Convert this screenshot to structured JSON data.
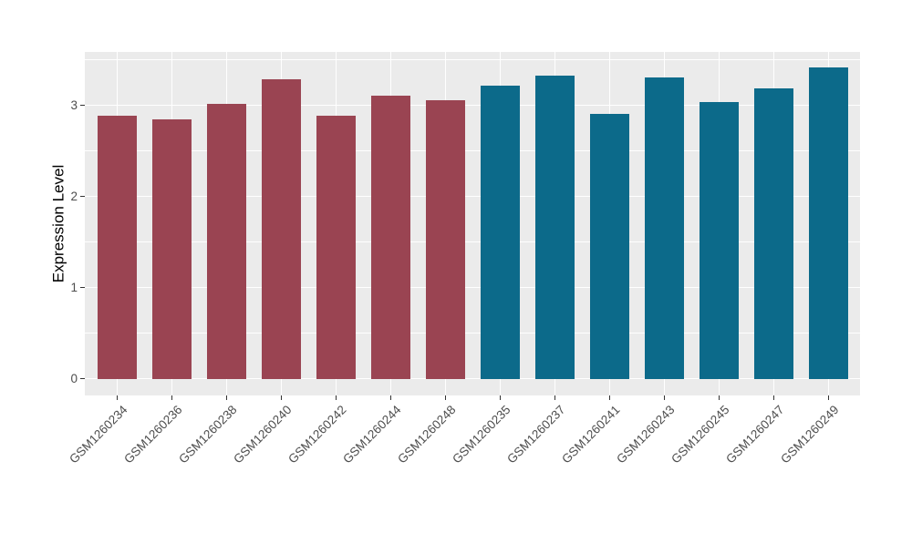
{
  "chart_data": {
    "type": "bar",
    "title": "",
    "xlabel": "",
    "ylabel": "Expression Level",
    "ylim": [
      0,
      3.59
    ],
    "yticks": [
      0,
      1,
      2,
      3
    ],
    "yticks_minor": [
      0.5,
      1.5,
      2.5,
      3.5
    ],
    "grid": true,
    "legend_position": "none",
    "panel_bg": "#EBEBEB",
    "grid_color": "#FFFFFF",
    "tick_label_color": "#4D4D4D",
    "axis_title_color": "#000000",
    "categories": [
      "GSM1260234",
      "GSM1260236",
      "GSM1260238",
      "GSM1260240",
      "GSM1260242",
      "GSM1260244",
      "GSM1260248",
      "GSM1260235",
      "GSM1260237",
      "GSM1260241",
      "GSM1260243",
      "GSM1260245",
      "GSM1260247",
      "GSM1260249"
    ],
    "values": [
      2.89,
      2.85,
      3.02,
      3.29,
      2.89,
      3.11,
      3.06,
      3.22,
      3.33,
      2.91,
      3.31,
      3.04,
      3.19,
      3.42
    ],
    "groups": [
      "group1",
      "group1",
      "group1",
      "group1",
      "group1",
      "group1",
      "group1",
      "group2",
      "group2",
      "group2",
      "group2",
      "group2",
      "group2",
      "group2"
    ],
    "group_colors": {
      "group1": "#9A4452",
      "group2": "#0C6A8A"
    }
  }
}
